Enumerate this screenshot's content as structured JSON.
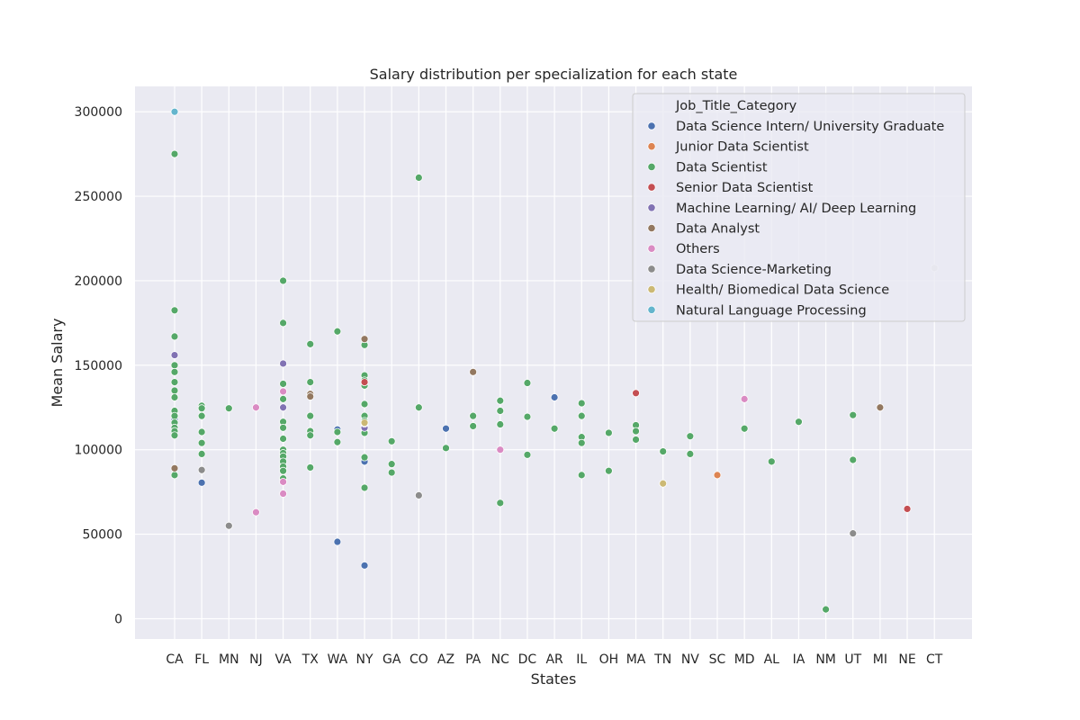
{
  "chart_data": {
    "type": "scatter",
    "title": "Salary distribution per specialization for each state",
    "xlabel": "States",
    "ylabel": "Mean Salary",
    "ylim": [
      -12000,
      315000
    ],
    "yticks": [
      0,
      50000,
      100000,
      150000,
      200000,
      250000,
      300000
    ],
    "ytick_labels": [
      "0",
      "50000",
      "100000",
      "150000",
      "200000",
      "250000",
      "300000"
    ],
    "grid": true,
    "legend_position": "top-right",
    "categories": [
      "CA",
      "FL",
      "MN",
      "NJ",
      "VA",
      "TX",
      "WA",
      "NY",
      "GA",
      "CO",
      "AZ",
      "PA",
      "NC",
      "DC",
      "AR",
      "IL",
      "OH",
      "MA",
      "TN",
      "NV",
      "SC",
      "MD",
      "AL",
      "IA",
      "NM",
      "UT",
      "MI",
      "NE",
      "CT"
    ],
    "legend_title": "Job_Title_Category",
    "series": [
      {
        "name": "Data Science Intern/ University Graduate",
        "color": "#4c72b0",
        "points": [
          [
            "CA",
            121000
          ],
          [
            "CA",
            118000
          ],
          [
            "FL",
            80500
          ],
          [
            "WA",
            45500
          ],
          [
            "WA",
            112000
          ],
          [
            "NY",
            31500
          ],
          [
            "NY",
            93000
          ],
          [
            "NY",
            111000
          ],
          [
            "AZ",
            112500
          ],
          [
            "AR",
            131000
          ]
        ]
      },
      {
        "name": "Junior Data Scientist",
        "color": "#dd8452",
        "points": [
          [
            "SC",
            85000
          ]
        ]
      },
      {
        "name": "Data Scientist",
        "color": "#55a868",
        "points": [
          [
            "CA",
            275000
          ],
          [
            "CA",
            182500
          ],
          [
            "CA",
            167000
          ],
          [
            "CA",
            156000
          ],
          [
            "CA",
            150000
          ],
          [
            "CA",
            146000
          ],
          [
            "CA",
            140000
          ],
          [
            "CA",
            135000
          ],
          [
            "CA",
            131000
          ],
          [
            "CA",
            123000
          ],
          [
            "CA",
            120000
          ],
          [
            "CA",
            116000
          ],
          [
            "CA",
            113000
          ],
          [
            "CA",
            111000
          ],
          [
            "CA",
            108500
          ],
          [
            "CA",
            85000
          ],
          [
            "FL",
            126000
          ],
          [
            "FL",
            124500
          ],
          [
            "FL",
            120000
          ],
          [
            "FL",
            110500
          ],
          [
            "FL",
            104000
          ],
          [
            "FL",
            97500
          ],
          [
            "MN",
            124500
          ],
          [
            "VA",
            200000
          ],
          [
            "VA",
            175000
          ],
          [
            "VA",
            139000
          ],
          [
            "VA",
            130000
          ],
          [
            "VA",
            116500
          ],
          [
            "VA",
            113000
          ],
          [
            "VA",
            106500
          ],
          [
            "VA",
            100000
          ],
          [
            "VA",
            98000
          ],
          [
            "VA",
            96000
          ],
          [
            "VA",
            93000
          ],
          [
            "VA",
            90000
          ],
          [
            "VA",
            87500
          ],
          [
            "VA",
            83000
          ],
          [
            "TX",
            162500
          ],
          [
            "TX",
            140000
          ],
          [
            "TX",
            120000
          ],
          [
            "TX",
            111000
          ],
          [
            "TX",
            108500
          ],
          [
            "TX",
            89500
          ],
          [
            "WA",
            170000
          ],
          [
            "WA",
            110500
          ],
          [
            "WA",
            104500
          ],
          [
            "NY",
            162000
          ],
          [
            "NY",
            144000
          ],
          [
            "NY",
            141000
          ],
          [
            "NY",
            138000
          ],
          [
            "NY",
            127000
          ],
          [
            "NY",
            120000
          ],
          [
            "NY",
            117000
          ],
          [
            "NY",
            114000
          ],
          [
            "NY",
            110000
          ],
          [
            "NY",
            95500
          ],
          [
            "NY",
            77500
          ],
          [
            "GA",
            105000
          ],
          [
            "GA",
            91500
          ],
          [
            "GA",
            86500
          ],
          [
            "CO",
            261000
          ],
          [
            "CO",
            125000
          ],
          [
            "AZ",
            101000
          ],
          [
            "PA",
            120000
          ],
          [
            "PA",
            114000
          ],
          [
            "NC",
            129000
          ],
          [
            "NC",
            123000
          ],
          [
            "NC",
            115000
          ],
          [
            "NC",
            68500
          ],
          [
            "DC",
            139500
          ],
          [
            "DC",
            119500
          ],
          [
            "DC",
            97000
          ],
          [
            "AR",
            112500
          ],
          [
            "IL",
            127500
          ],
          [
            "IL",
            120000
          ],
          [
            "IL",
            107500
          ],
          [
            "IL",
            104000
          ],
          [
            "IL",
            85000
          ],
          [
            "OH",
            110000
          ],
          [
            "OH",
            87500
          ],
          [
            "MA",
            114500
          ],
          [
            "MA",
            111000
          ],
          [
            "MA",
            106000
          ],
          [
            "TN",
            99000
          ],
          [
            "NV",
            108000
          ],
          [
            "NV",
            97500
          ],
          [
            "MD",
            112500
          ],
          [
            "AL",
            93000
          ],
          [
            "IA",
            116500
          ],
          [
            "NM",
            5500
          ],
          [
            "UT",
            120500
          ],
          [
            "UT",
            94000
          ]
        ]
      },
      {
        "name": "Senior Data Scientist",
        "color": "#c44e52",
        "points": [
          [
            "NY",
            140000
          ],
          [
            "MA",
            133500
          ],
          [
            "NE",
            65000
          ]
        ]
      },
      {
        "name": "Machine Learning/ AI/ Deep Learning",
        "color": "#8172b3",
        "points": [
          [
            "CA",
            156000
          ],
          [
            "VA",
            151000
          ],
          [
            "VA",
            125000
          ],
          [
            "NY",
            113000
          ]
        ]
      },
      {
        "name": "Data Analyst",
        "color": "#937860",
        "points": [
          [
            "CA",
            89000
          ],
          [
            "TX",
            133000
          ],
          [
            "TX",
            131500
          ],
          [
            "NY",
            165500
          ],
          [
            "PA",
            146000
          ],
          [
            "MI",
            125000
          ]
        ]
      },
      {
        "name": "Others",
        "color": "#da8bc3",
        "points": [
          [
            "NJ",
            125000
          ],
          [
            "NJ",
            63000
          ],
          [
            "VA",
            134500
          ],
          [
            "VA",
            81000
          ],
          [
            "VA",
            74000
          ],
          [
            "NC",
            100000
          ],
          [
            "MD",
            130000
          ]
        ]
      },
      {
        "name": "Data Science-Marketing",
        "color": "#8c8c8c",
        "points": [
          [
            "FL",
            88000
          ],
          [
            "MN",
            55000
          ],
          [
            "NY",
            115500
          ],
          [
            "CO",
            73000
          ],
          [
            "UT",
            50500
          ]
        ]
      },
      {
        "name": "Health/ Biomedical Data Science",
        "color": "#ccb974",
        "points": [
          [
            "NY",
            116000
          ],
          [
            "TN",
            80000
          ]
        ]
      },
      {
        "name": "Natural Language Processing",
        "color": "#64b5cd",
        "points": [
          [
            "CA",
            300000
          ]
        ]
      },
      {
        "name": "",
        "color": "#dcdcdc",
        "points": [
          [
            "CT",
            207500
          ]
        ]
      }
    ]
  }
}
